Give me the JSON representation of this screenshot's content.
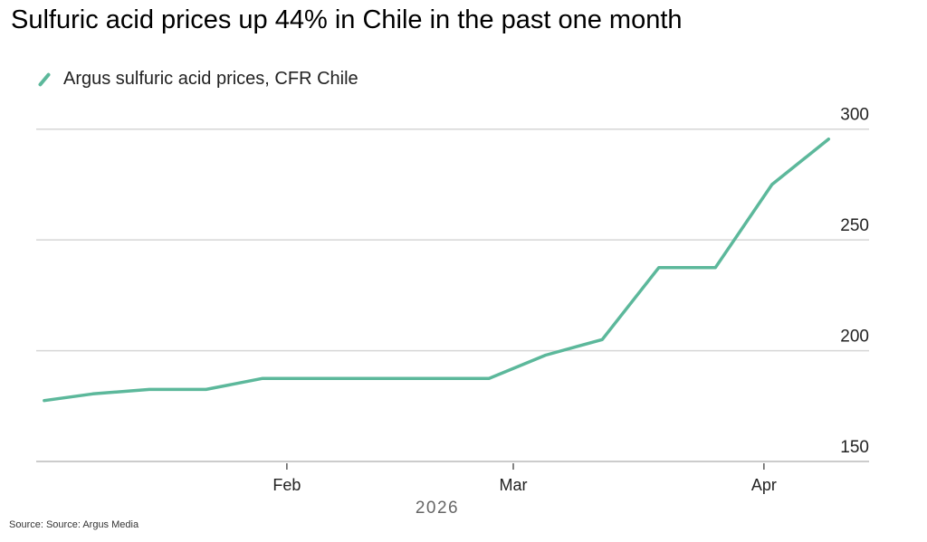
{
  "chart_data": {
    "type": "line",
    "title": "Sulfuric acid prices up 44% in Chile in the past one month",
    "xlabel": "2026",
    "ylabel": "",
    "source": "Source: Source: Argus Media",
    "ylim": [
      150,
      300
    ],
    "yticks": [
      "150",
      "200",
      "250",
      "300"
    ],
    "xticks": [
      {
        "label": "Feb",
        "date": "2026-02-01"
      },
      {
        "label": "Mar",
        "date": "2026-03-01"
      },
      {
        "label": "Apr",
        "date": "2026-04-01"
      }
    ],
    "xlim": [
      "2026-01-01",
      "2026-04-14"
    ],
    "grid": true,
    "legend_position": "top-left",
    "series": [
      {
        "name": "Argus sulfuric acid prices, CFR Chile",
        "color": "#5cb89b",
        "x": [
          "2026-01-02",
          "2026-01-08",
          "2026-01-15",
          "2026-01-22",
          "2026-01-29",
          "2026-02-05",
          "2026-02-12",
          "2026-02-19",
          "2026-02-26",
          "2026-03-05",
          "2026-03-12",
          "2026-03-19",
          "2026-03-26",
          "2026-04-02",
          "2026-04-09"
        ],
        "values": [
          177.5,
          180.5,
          182.5,
          182.5,
          187.5,
          187.5,
          187.5,
          187.5,
          187.5,
          198,
          205,
          237.5,
          237.5,
          275,
          295.5
        ]
      }
    ]
  }
}
